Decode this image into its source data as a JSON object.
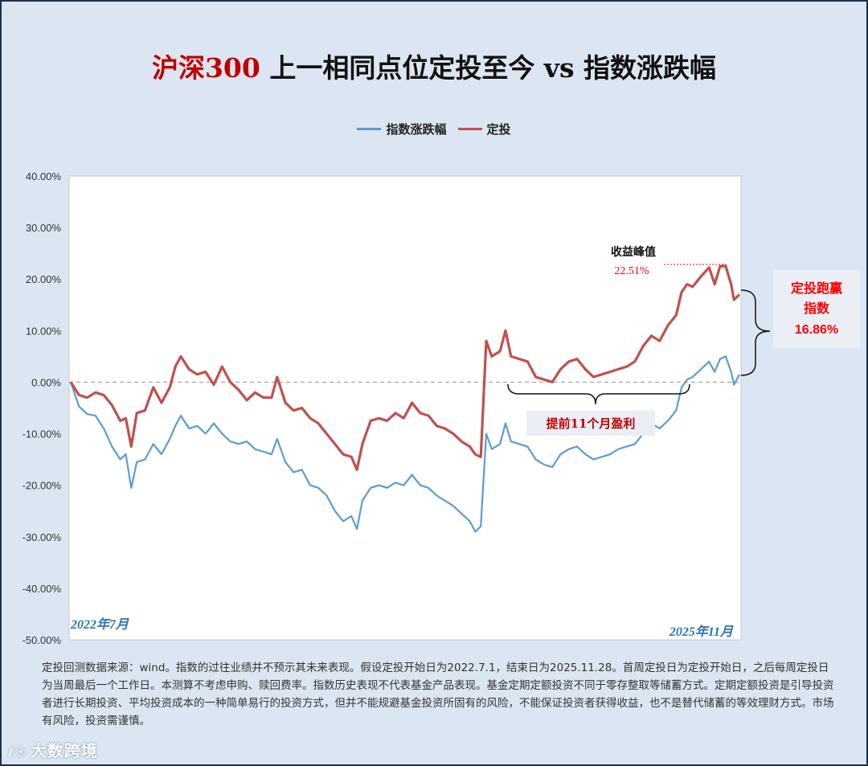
{
  "title": {
    "brand": "沪深300",
    "rest": " 上一相同点位定投至今 vs 指数涨跌幅"
  },
  "legend": [
    {
      "name": "指数涨跌幅",
      "color": "#5b9bd5"
    },
    {
      "name": "定投",
      "color": "#c0504d"
    }
  ],
  "colors": {
    "index": "#5b9bd5",
    "dca": "#c0504d",
    "callout_bg": "#eaeff5",
    "emphasis": "#ff0000"
  },
  "chart_data": {
    "type": "line",
    "ylim": [
      -0.5,
      0.4
    ],
    "y_ticks": [
      "40.00%",
      "30.00%",
      "20.00%",
      "10.00%",
      "0.00%",
      "-10.00%",
      "-20.00%",
      "-30.00%",
      "-40.00%",
      "-50.00%"
    ],
    "x_start_label": "2022年7月",
    "x_end_label": "2025年11月",
    "n_points": 175,
    "series": [
      {
        "name": "指数涨跌幅",
        "anchors": [
          [
            0,
            0.0
          ],
          [
            3,
            -0.047
          ],
          [
            6,
            -0.062
          ],
          [
            9,
            -0.065
          ],
          [
            12,
            -0.09
          ],
          [
            15,
            -0.125
          ],
          [
            18,
            -0.15
          ],
          [
            20,
            -0.14
          ],
          [
            22,
            -0.205
          ],
          [
            24,
            -0.155
          ],
          [
            27,
            -0.15
          ],
          [
            30,
            -0.12
          ],
          [
            33,
            -0.14
          ],
          [
            36,
            -0.11
          ],
          [
            38,
            -0.085
          ],
          [
            40,
            -0.065
          ],
          [
            43,
            -0.09
          ],
          [
            46,
            -0.085
          ],
          [
            49,
            -0.1
          ],
          [
            52,
            -0.08
          ],
          [
            55,
            -0.1
          ],
          [
            58,
            -0.115
          ],
          [
            61,
            -0.12
          ],
          [
            64,
            -0.115
          ],
          [
            67,
            -0.13
          ],
          [
            70,
            -0.135
          ],
          [
            73,
            -0.14
          ],
          [
            75,
            -0.11
          ],
          [
            78,
            -0.155
          ],
          [
            81,
            -0.175
          ],
          [
            84,
            -0.17
          ],
          [
            87,
            -0.2
          ],
          [
            90,
            -0.205
          ],
          [
            93,
            -0.22
          ],
          [
            96,
            -0.25
          ],
          [
            99,
            -0.27
          ],
          [
            102,
            -0.26
          ],
          [
            104,
            -0.285
          ],
          [
            106,
            -0.23
          ],
          [
            109,
            -0.205
          ],
          [
            112,
            -0.2
          ],
          [
            115,
            -0.205
          ],
          [
            118,
            -0.195
          ],
          [
            121,
            -0.2
          ],
          [
            124,
            -0.18
          ],
          [
            127,
            -0.2
          ],
          [
            130,
            -0.205
          ],
          [
            133,
            -0.22
          ],
          [
            136,
            -0.23
          ],
          [
            139,
            -0.24
          ],
          [
            142,
            -0.255
          ],
          [
            145,
            -0.27
          ],
          [
            147,
            -0.29
          ],
          [
            149,
            -0.28
          ],
          [
            151,
            -0.1
          ],
          [
            153,
            -0.13
          ],
          [
            156,
            -0.12
          ],
          [
            158,
            -0.08
          ],
          [
            160,
            -0.115
          ],
          [
            163,
            -0.12
          ],
          [
            166,
            -0.125
          ],
          [
            169,
            -0.15
          ],
          [
            172,
            -0.16
          ],
          [
            175,
            -0.165
          ],
          [
            178,
            -0.14
          ],
          [
            181,
            -0.13
          ],
          [
            184,
            -0.125
          ],
          [
            187,
            -0.14
          ],
          [
            190,
            -0.15
          ],
          [
            193,
            -0.145
          ],
          [
            196,
            -0.14
          ],
          [
            199,
            -0.13
          ],
          [
            202,
            -0.125
          ],
          [
            205,
            -0.12
          ],
          [
            208,
            -0.1
          ],
          [
            211,
            -0.08
          ],
          [
            214,
            -0.09
          ],
          [
            217,
            -0.075
          ],
          [
            220,
            -0.055
          ],
          [
            222,
            -0.01
          ],
          [
            224,
            0.005
          ],
          [
            226,
            0.01
          ],
          [
            229,
            0.025
          ],
          [
            232,
            0.04
          ],
          [
            234,
            0.02
          ],
          [
            236,
            0.045
          ],
          [
            238,
            0.05
          ],
          [
            240,
            0.02
          ],
          [
            241,
            -0.005
          ],
          [
            243,
            0.015
          ]
        ]
      },
      {
        "name": "定投",
        "anchors": [
          [
            0,
            0.0
          ],
          [
            3,
            -0.025
          ],
          [
            6,
            -0.03
          ],
          [
            9,
            -0.02
          ],
          [
            12,
            -0.025
          ],
          [
            15,
            -0.045
          ],
          [
            18,
            -0.075
          ],
          [
            20,
            -0.07
          ],
          [
            22,
            -0.125
          ],
          [
            24,
            -0.06
          ],
          [
            27,
            -0.055
          ],
          [
            30,
            -0.01
          ],
          [
            33,
            -0.04
          ],
          [
            36,
            -0.01
          ],
          [
            38,
            0.03
          ],
          [
            40,
            0.05
          ],
          [
            43,
            0.025
          ],
          [
            46,
            0.015
          ],
          [
            49,
            0.02
          ],
          [
            52,
            -0.005
          ],
          [
            55,
            0.03
          ],
          [
            58,
            0.0
          ],
          [
            61,
            -0.015
          ],
          [
            64,
            -0.035
          ],
          [
            67,
            -0.02
          ],
          [
            70,
            -0.03
          ],
          [
            73,
            -0.03
          ],
          [
            75,
            0.01
          ],
          [
            78,
            -0.04
          ],
          [
            81,
            -0.055
          ],
          [
            84,
            -0.05
          ],
          [
            87,
            -0.07
          ],
          [
            90,
            -0.08
          ],
          [
            93,
            -0.1
          ],
          [
            96,
            -0.12
          ],
          [
            99,
            -0.14
          ],
          [
            102,
            -0.145
          ],
          [
            104,
            -0.17
          ],
          [
            106,
            -0.12
          ],
          [
            109,
            -0.075
          ],
          [
            112,
            -0.07
          ],
          [
            115,
            -0.075
          ],
          [
            118,
            -0.06
          ],
          [
            121,
            -0.07
          ],
          [
            124,
            -0.04
          ],
          [
            127,
            -0.06
          ],
          [
            130,
            -0.065
          ],
          [
            133,
            -0.085
          ],
          [
            136,
            -0.09
          ],
          [
            139,
            -0.1
          ],
          [
            142,
            -0.115
          ],
          [
            145,
            -0.125
          ],
          [
            147,
            -0.14
          ],
          [
            149,
            -0.145
          ],
          [
            151,
            0.08
          ],
          [
            153,
            0.05
          ],
          [
            156,
            0.06
          ],
          [
            158,
            0.1
          ],
          [
            160,
            0.05
          ],
          [
            163,
            0.045
          ],
          [
            166,
            0.04
          ],
          [
            169,
            0.01
          ],
          [
            172,
            0.005
          ],
          [
            175,
            0.0
          ],
          [
            178,
            0.025
          ],
          [
            181,
            0.04
          ],
          [
            184,
            0.045
          ],
          [
            187,
            0.025
          ],
          [
            190,
            0.01
          ],
          [
            193,
            0.015
          ],
          [
            196,
            0.02
          ],
          [
            199,
            0.025
          ],
          [
            202,
            0.03
          ],
          [
            205,
            0.04
          ],
          [
            208,
            0.07
          ],
          [
            211,
            0.09
          ],
          [
            214,
            0.08
          ],
          [
            217,
            0.11
          ],
          [
            220,
            0.13
          ],
          [
            222,
            0.175
          ],
          [
            224,
            0.19
          ],
          [
            226,
            0.185
          ],
          [
            229,
            0.205
          ],
          [
            232,
            0.2225
          ],
          [
            234,
            0.19
          ],
          [
            236,
            0.225
          ],
          [
            238,
            0.2251
          ],
          [
            240,
            0.19
          ],
          [
            241,
            0.16
          ],
          [
            243,
            0.17
          ]
        ]
      }
    ]
  },
  "annotations": {
    "peak_label": "收益峰值",
    "peak_value": "22.51%",
    "early_profit": "提前11个月盈利",
    "outperform_line1": "定投跑赢",
    "outperform_line2": "指数",
    "outperform_value": "16.86%"
  },
  "footnote": "定投回测数据来源：wind。指数的过往业绩并不预示其未来表现。假设定投开始日为2022.7.1，结束日为2025.11.28。首周定投日为定投开始日，之后每周定投日为当周最后一个工作日。本测算不考虑申购、赎回费率。指数历史表现不代表基金产品表现。基金定期定额投资不同于零存整取等储蓄方式。定期定额投资是引导投资者进行长期投资、平均投资成本的一种简单易行的投资方式，但并不能规避基金投资所固有的风险，不能保证投资者获得收益，也不是替代储蓄的等效理财方式。市场有风险，投资需谨慎。",
  "logo": {
    "mark": "ℓ☉",
    "text": "大数跨境"
  }
}
